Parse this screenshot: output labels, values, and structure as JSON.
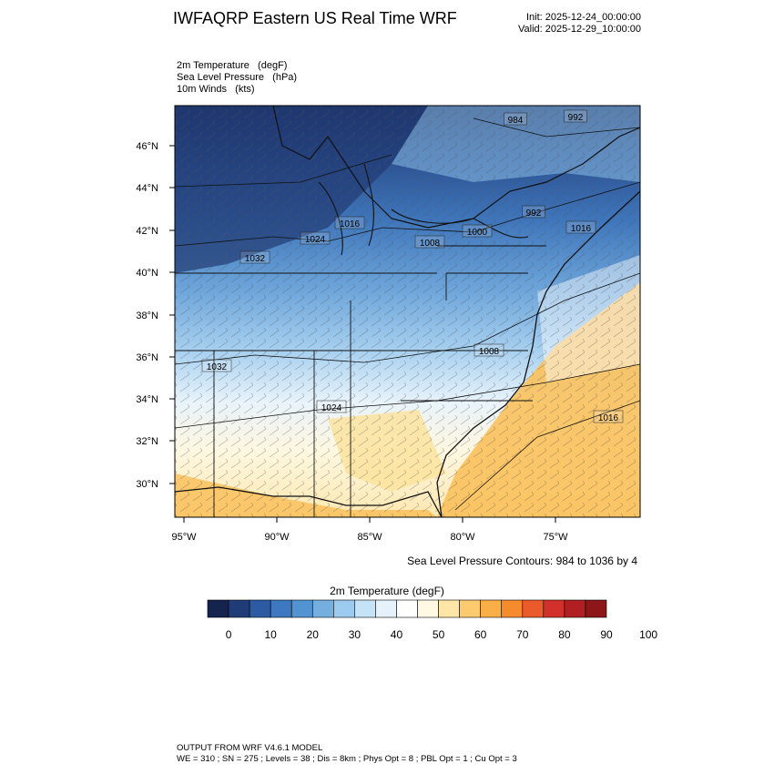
{
  "header": {
    "title": "IWFAQRP Eastern US Real Time WRF",
    "init": "Init: 2025-12-24_00:00:00",
    "valid": "Valid: 2025-12-29_10:00:00"
  },
  "fields": [
    "2m Temperature   (degF)",
    "Sea Level Pressure   (hPa)",
    "10m Winds   (kts)"
  ],
  "map": {
    "lat_ticks": [
      "46°N",
      "44°N",
      "42°N",
      "40°N",
      "38°N",
      "36°N",
      "34°N",
      "32°N",
      "30°N"
    ],
    "lon_ticks": [
      "95°W",
      "90°W",
      "85°W",
      "80°W",
      "75°W"
    ],
    "slp_labels": [
      "984",
      "992",
      "992",
      "1016",
      "1024",
      "1008",
      "1000",
      "1032",
      "1016",
      "1008",
      "1032",
      "1024",
      "1016"
    ],
    "contour_note": "Sea Level Pressure Contours: 984 to 1036 by 4"
  },
  "colorbar": {
    "title": "2m Temperature  (degF)",
    "tick_labels": [
      "0",
      "10",
      "20",
      "30",
      "40",
      "50",
      "60",
      "70",
      "80",
      "90",
      "100"
    ],
    "colors": [
      "#15234e",
      "#1f3c78",
      "#2d5ba3",
      "#3d78c0",
      "#5294d2",
      "#74afe0",
      "#9dcbef",
      "#c6e2f7",
      "#e6f2fb",
      "#ffffff",
      "#fff8e3",
      "#ffe5a6",
      "#fdcb6e",
      "#f9ae46",
      "#f58b2d",
      "#ea5a2a",
      "#d2302a",
      "#b11f22",
      "#8d1619"
    ]
  },
  "footer": {
    "line1": "OUTPUT FROM WRF V4.6.1 MODEL",
    "line2": "WE = 310 ; SN = 275 ; Levels = 38 ; Dis = 8km ; Phys Opt = 8 ; PBL Opt = 1 ; Cu Opt = 3"
  }
}
